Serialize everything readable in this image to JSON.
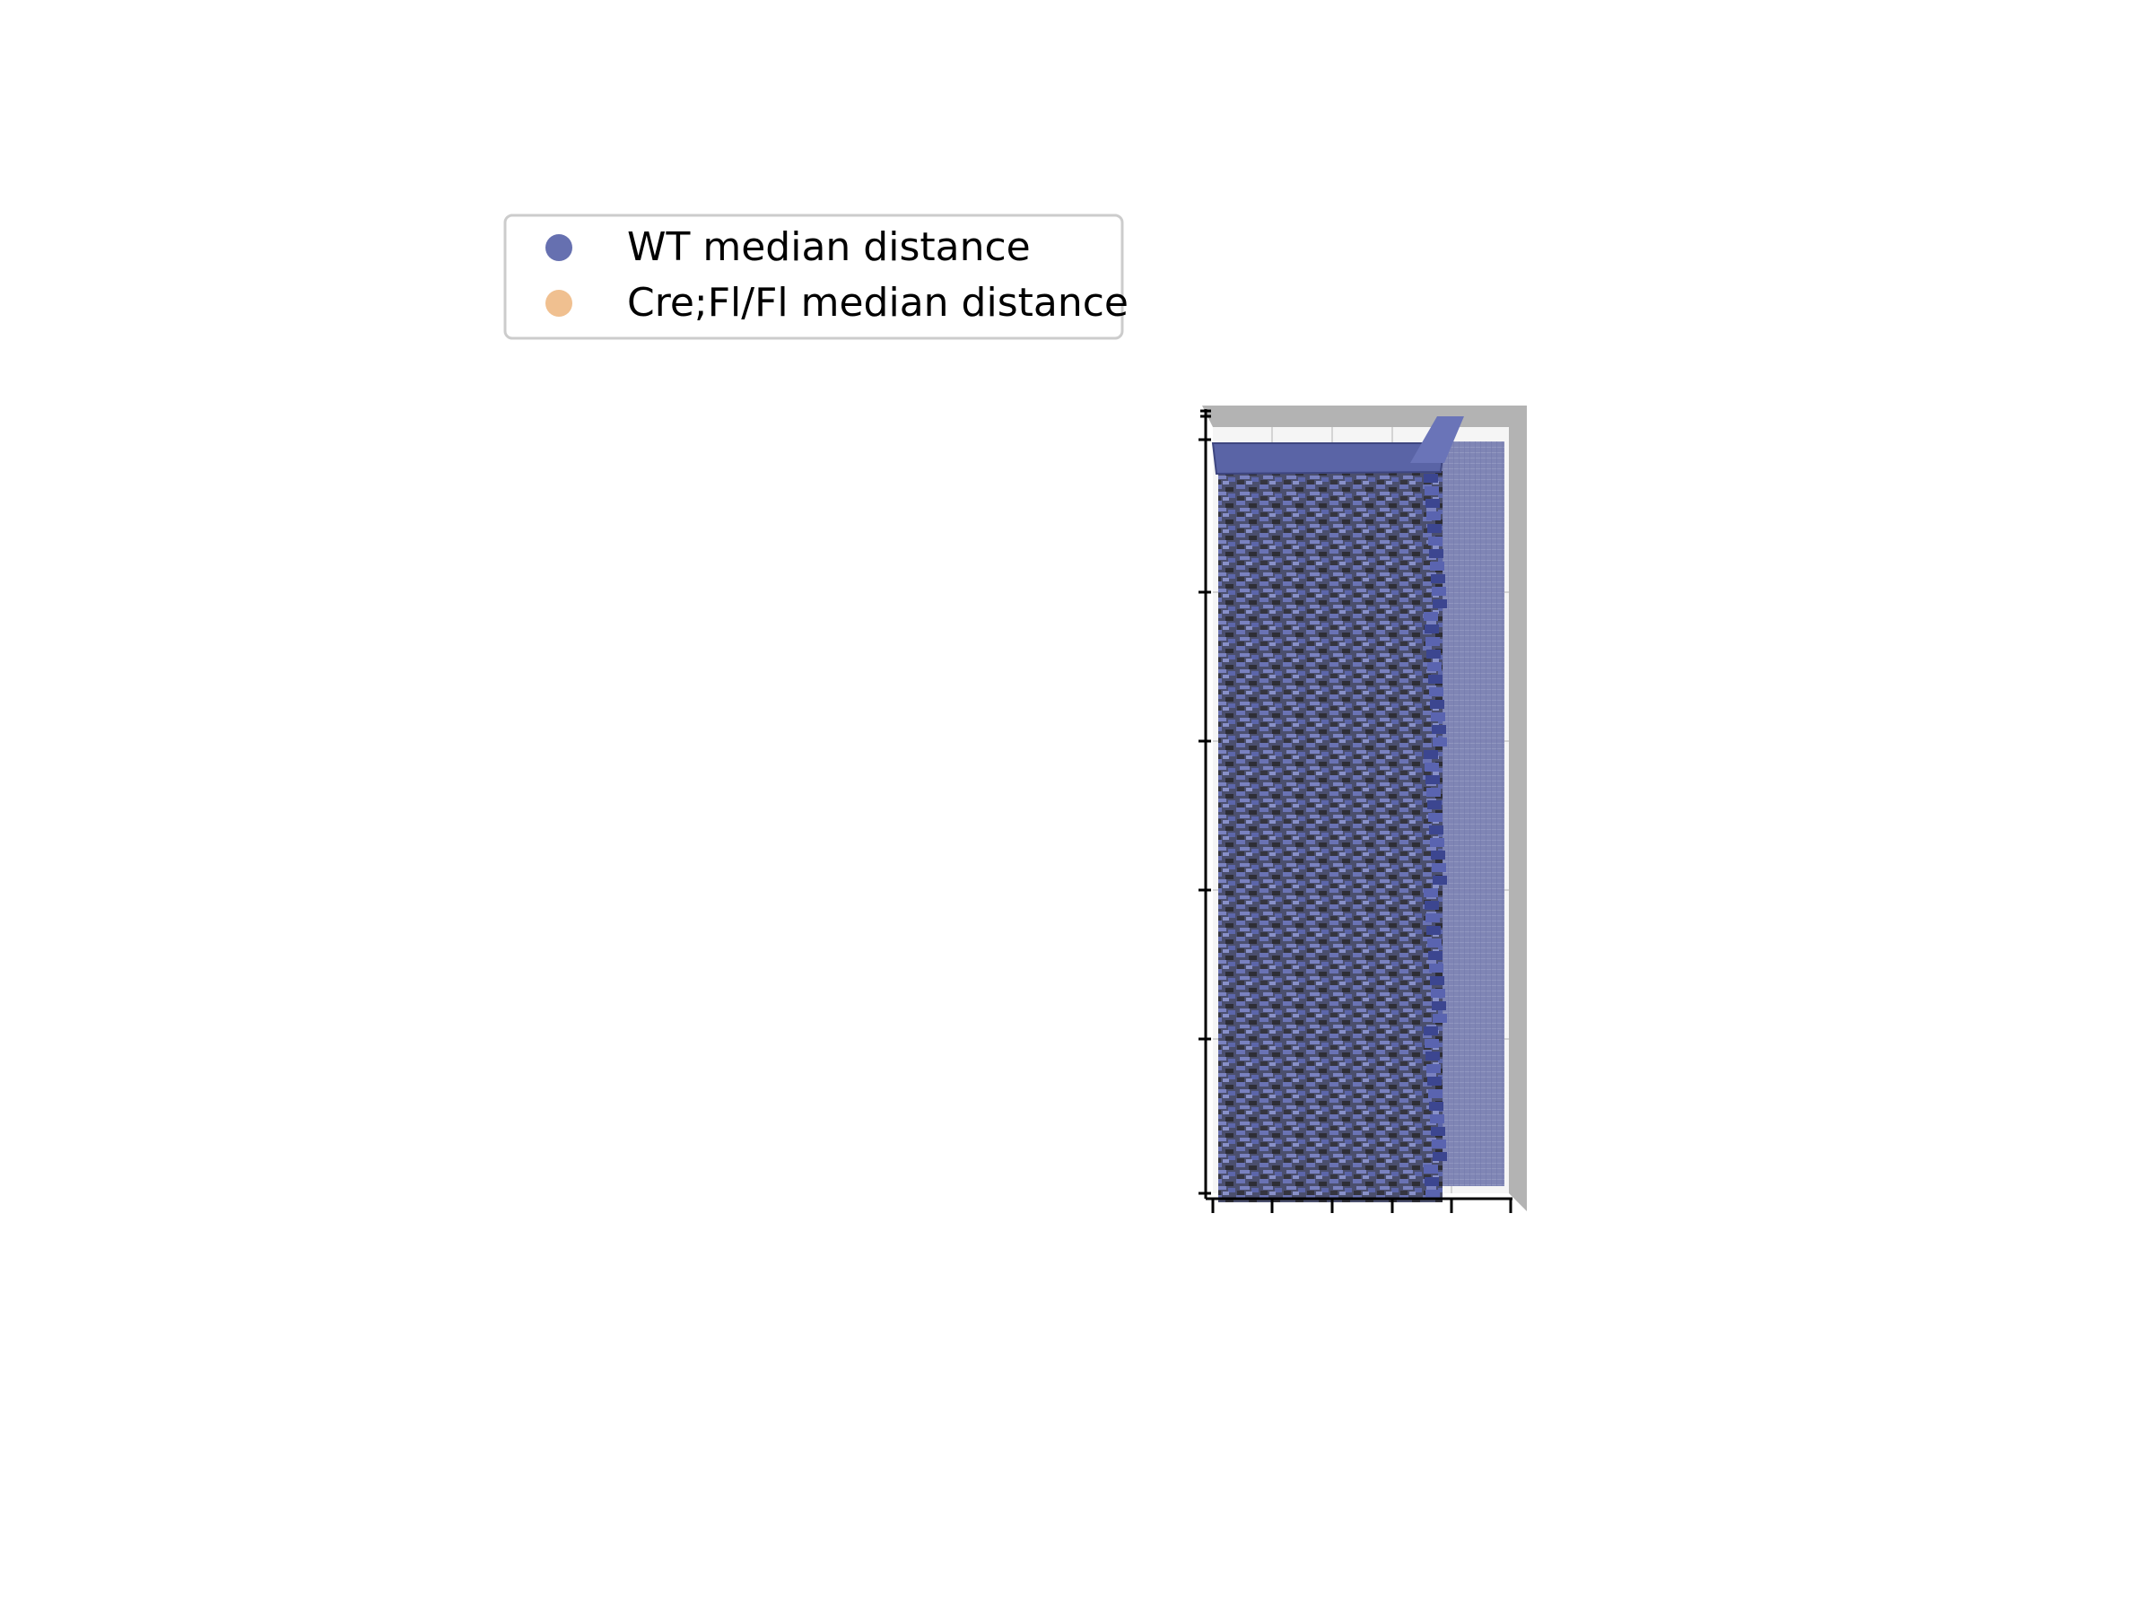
{
  "chart_data": {
    "type": "scatter",
    "title": "",
    "xlabel": "",
    "ylabel": "",
    "zlabel": "",
    "grid": true,
    "legend_placement": "upper-left",
    "series": [
      {
        "name": "WT median distance",
        "color": "#6670b0",
        "marker": "circle"
      },
      {
        "name": "Cre;Fl/Fl median distance",
        "color": "#f0c090",
        "marker": "circle"
      }
    ]
  },
  "colors": {
    "pane_gray": "#b3b3b3",
    "surface_blue": "#5a64a6",
    "surface_dark": "#3a3a46",
    "grid": "#d4d4d4"
  }
}
